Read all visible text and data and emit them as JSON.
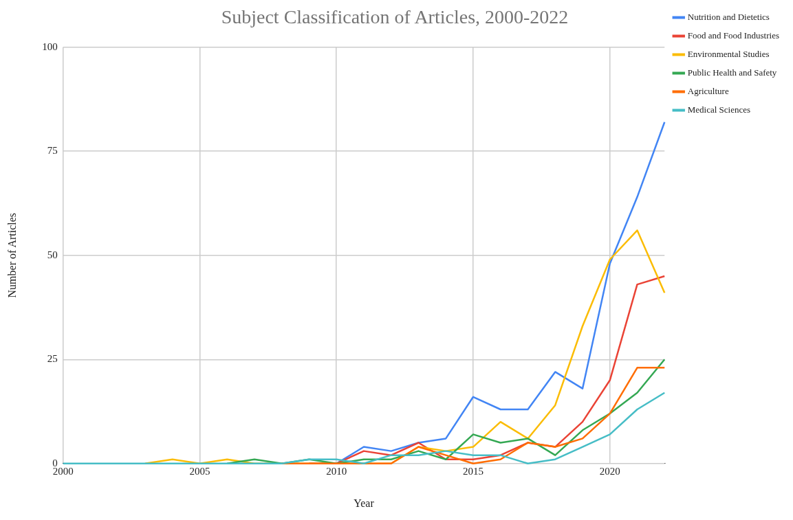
{
  "chart_data": {
    "type": "line",
    "title": "Subject Classification of Articles, 2000-2022",
    "xlabel": "Year",
    "ylabel": "Number of Articles",
    "x": [
      2000,
      2001,
      2002,
      2003,
      2004,
      2005,
      2006,
      2007,
      2008,
      2009,
      2010,
      2011,
      2012,
      2013,
      2014,
      2015,
      2016,
      2017,
      2018,
      2019,
      2020,
      2021,
      2022
    ],
    "series": [
      {
        "name": "Nutrition and Dietetics",
        "color": "#4285f4",
        "values": [
          null,
          null,
          null,
          null,
          null,
          null,
          null,
          null,
          null,
          0,
          0,
          4,
          3,
          5,
          6,
          16,
          13,
          13,
          22,
          18,
          48,
          64,
          82
        ]
      },
      {
        "name": "Food and Food Industries",
        "color": "#ea4335",
        "values": [
          null,
          null,
          null,
          null,
          null,
          null,
          null,
          null,
          null,
          0,
          0,
          3,
          2,
          5,
          1,
          1,
          2,
          5,
          4,
          10,
          20,
          43,
          45
        ]
      },
      {
        "name": "Environmental Studies",
        "color": "#fbbc04",
        "values": [
          null,
          null,
          null,
          0,
          1,
          0,
          1,
          0,
          0,
          0,
          0,
          0,
          0,
          4,
          3,
          4,
          10,
          6,
          14,
          33,
          49,
          56,
          41
        ]
      },
      {
        "name": "Public Health and Safety",
        "color": "#34a853",
        "values": [
          null,
          null,
          null,
          null,
          null,
          null,
          0,
          1,
          0,
          1,
          0,
          1,
          1,
          3,
          1,
          7,
          5,
          6,
          2,
          8,
          12,
          17,
          25
        ]
      },
      {
        "name": "Agriculture",
        "color": "#ff6d01",
        "values": [
          null,
          null,
          null,
          null,
          null,
          null,
          null,
          null,
          0,
          0,
          0,
          0,
          0,
          4,
          2,
          0,
          1,
          5,
          4,
          6,
          12,
          23,
          23
        ]
      },
      {
        "name": "Medical Sciences",
        "color": "#46bdc6",
        "values": [
          0,
          0,
          0,
          0,
          0,
          0,
          0,
          0,
          0,
          1,
          1,
          0,
          2,
          2,
          3,
          2,
          2,
          0,
          1,
          4,
          7,
          13,
          17
        ]
      }
    ],
    "xlim": [
      2000,
      2022
    ],
    "xticks": [
      2000,
      2005,
      2010,
      2015,
      2020
    ],
    "ylim": [
      0,
      100
    ],
    "yticks": [
      0,
      25,
      50,
      75,
      100
    ],
    "grid": true,
    "legend": "top right",
    "marker": "none",
    "line_style": "solid"
  }
}
